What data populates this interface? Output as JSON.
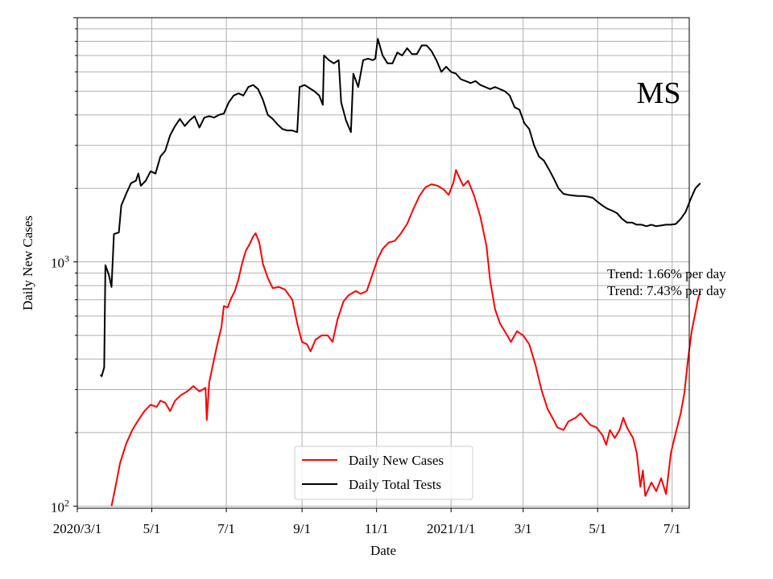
{
  "chart_data": {
    "type": "line",
    "title": "",
    "region_label": "MS",
    "xlabel": "Date",
    "ylabel": "Daily New Cases",
    "yscale": "log",
    "ylim": [
      98,
      10000
    ],
    "xlim_days": [
      0,
      501
    ],
    "x_ticks": [
      {
        "day": 0,
        "label": "2020/3/1"
      },
      {
        "day": 61,
        "label": "5/1"
      },
      {
        "day": 122,
        "label": "7/1"
      },
      {
        "day": 184,
        "label": "9/1"
      },
      {
        "day": 245,
        "label": "11/1"
      },
      {
        "day": 306,
        "label": "2021/1/1"
      },
      {
        "day": 365,
        "label": "3/1"
      },
      {
        "day": 426,
        "label": "5/1"
      },
      {
        "day": 487,
        "label": "7/1"
      }
    ],
    "y_ticks": [
      {
        "value": 100,
        "base": "10",
        "exp": "2"
      },
      {
        "value": 1000,
        "base": "10",
        "exp": "3"
      }
    ],
    "grid": true,
    "legend": {
      "position": "bottom-center"
    },
    "annotations": [
      "Trend: 1.66% per day",
      "Trend: 7.43% per day"
    ],
    "series": [
      {
        "name": "Daily New Cases",
        "color": "#ff0000",
        "points": [
          [
            28,
            100
          ],
          [
            31,
            118
          ],
          [
            35,
            150
          ],
          [
            40,
            180
          ],
          [
            45,
            205
          ],
          [
            50,
            225
          ],
          [
            55,
            245
          ],
          [
            60,
            260
          ],
          [
            65,
            255
          ],
          [
            68,
            270
          ],
          [
            72,
            265
          ],
          [
            76,
            245
          ],
          [
            80,
            270
          ],
          [
            85,
            285
          ],
          [
            90,
            295
          ],
          [
            95,
            310
          ],
          [
            100,
            295
          ],
          [
            105,
            305
          ],
          [
            106,
            225
          ],
          [
            108,
            320
          ],
          [
            112,
            400
          ],
          [
            115,
            470
          ],
          [
            118,
            540
          ],
          [
            120,
            660
          ],
          [
            123,
            650
          ],
          [
            126,
            710
          ],
          [
            129,
            760
          ],
          [
            132,
            850
          ],
          [
            135,
            990
          ],
          [
            138,
            1110
          ],
          [
            141,
            1180
          ],
          [
            144,
            1270
          ],
          [
            146,
            1310
          ],
          [
            149,
            1200
          ],
          [
            152,
            980
          ],
          [
            156,
            860
          ],
          [
            160,
            780
          ],
          [
            165,
            790
          ],
          [
            170,
            770
          ],
          [
            176,
            700
          ],
          [
            180,
            560
          ],
          [
            184,
            470
          ],
          [
            188,
            460
          ],
          [
            191,
            430
          ],
          [
            195,
            480
          ],
          [
            200,
            500
          ],
          [
            205,
            500
          ],
          [
            209,
            470
          ],
          [
            213,
            580
          ],
          [
            218,
            690
          ],
          [
            222,
            730
          ],
          [
            228,
            760
          ],
          [
            232,
            740
          ],
          [
            237,
            760
          ],
          [
            242,
            900
          ],
          [
            246,
            1030
          ],
          [
            250,
            1130
          ],
          [
            255,
            1200
          ],
          [
            260,
            1220
          ],
          [
            265,
            1310
          ],
          [
            270,
            1430
          ],
          [
            275,
            1640
          ],
          [
            280,
            1860
          ],
          [
            285,
            2020
          ],
          [
            290,
            2080
          ],
          [
            295,
            2050
          ],
          [
            300,
            1980
          ],
          [
            304,
            1880
          ],
          [
            308,
            2120
          ],
          [
            310,
            2380
          ],
          [
            313,
            2200
          ],
          [
            316,
            2050
          ],
          [
            320,
            2150
          ],
          [
            325,
            1860
          ],
          [
            330,
            1530
          ],
          [
            335,
            1160
          ],
          [
            338,
            840
          ],
          [
            342,
            640
          ],
          [
            346,
            560
          ],
          [
            352,
            500
          ],
          [
            355,
            470
          ],
          [
            360,
            520
          ],
          [
            365,
            500
          ],
          [
            370,
            460
          ],
          [
            375,
            380
          ],
          [
            380,
            300
          ],
          [
            385,
            250
          ],
          [
            390,
            225
          ],
          [
            393,
            210
          ],
          [
            398,
            205
          ],
          [
            402,
            222
          ],
          [
            408,
            230
          ],
          [
            412,
            240
          ],
          [
            415,
            230
          ],
          [
            420,
            215
          ],
          [
            425,
            210
          ],
          [
            430,
            195
          ],
          [
            433,
            178
          ],
          [
            436,
            205
          ],
          [
            440,
            190
          ],
          [
            444,
            205
          ],
          [
            447,
            230
          ],
          [
            450,
            210
          ],
          [
            455,
            190
          ],
          [
            458,
            165
          ],
          [
            461,
            120
          ],
          [
            463,
            140
          ],
          [
            465,
            110
          ],
          [
            470,
            125
          ],
          [
            474,
            115
          ],
          [
            478,
            130
          ],
          [
            482,
            112
          ],
          [
            486,
            165
          ],
          [
            490,
            200
          ],
          [
            494,
            240
          ],
          [
            497,
            290
          ],
          [
            500,
            400
          ],
          [
            503,
            520
          ],
          [
            506,
            620
          ],
          [
            508,
            700
          ],
          [
            510,
            760
          ]
        ]
      },
      {
        "name": "Daily Total Tests",
        "color": "#000000",
        "points": [
          [
            19,
            345
          ],
          [
            20,
            340
          ],
          [
            22,
            370
          ],
          [
            23,
            970
          ],
          [
            26,
            880
          ],
          [
            28,
            790
          ],
          [
            30,
            1300
          ],
          [
            34,
            1320
          ],
          [
            36,
            1700
          ],
          [
            40,
            1900
          ],
          [
            44,
            2100
          ],
          [
            48,
            2150
          ],
          [
            50,
            2300
          ],
          [
            52,
            2050
          ],
          [
            56,
            2150
          ],
          [
            60,
            2350
          ],
          [
            64,
            2300
          ],
          [
            68,
            2700
          ],
          [
            72,
            2850
          ],
          [
            76,
            3300
          ],
          [
            80,
            3600
          ],
          [
            84,
            3850
          ],
          [
            88,
            3600
          ],
          [
            92,
            3800
          ],
          [
            96,
            3950
          ],
          [
            100,
            3550
          ],
          [
            104,
            3900
          ],
          [
            108,
            3950
          ],
          [
            112,
            3900
          ],
          [
            116,
            4000
          ],
          [
            120,
            4050
          ],
          [
            124,
            4500
          ],
          [
            128,
            4800
          ],
          [
            132,
            4900
          ],
          [
            136,
            4800
          ],
          [
            140,
            5200
          ],
          [
            144,
            5300
          ],
          [
            148,
            5100
          ],
          [
            152,
            4600
          ],
          [
            156,
            4000
          ],
          [
            160,
            3850
          ],
          [
            164,
            3650
          ],
          [
            168,
            3500
          ],
          [
            172,
            3450
          ],
          [
            176,
            3450
          ],
          [
            180,
            3400
          ],
          [
            182,
            5200
          ],
          [
            186,
            5300
          ],
          [
            190,
            5150
          ],
          [
            194,
            5000
          ],
          [
            198,
            4800
          ],
          [
            201,
            4400
          ],
          [
            202,
            7000
          ],
          [
            206,
            6700
          ],
          [
            210,
            6500
          ],
          [
            214,
            6700
          ],
          [
            216,
            4500
          ],
          [
            220,
            3800
          ],
          [
            224,
            3400
          ],
          [
            226,
            5900
          ],
          [
            230,
            5200
          ],
          [
            234,
            6700
          ],
          [
            238,
            6800
          ],
          [
            242,
            6700
          ],
          [
            244,
            6800
          ],
          [
            246,
            8200
          ],
          [
            250,
            7000
          ],
          [
            254,
            6500
          ],
          [
            258,
            6500
          ],
          [
            262,
            7200
          ],
          [
            266,
            7000
          ],
          [
            270,
            7500
          ],
          [
            274,
            7100
          ],
          [
            278,
            7100
          ],
          [
            282,
            7700
          ],
          [
            286,
            7700
          ],
          [
            290,
            7300
          ],
          [
            294,
            6700
          ],
          [
            298,
            6000
          ],
          [
            302,
            6300
          ],
          [
            306,
            6000
          ],
          [
            310,
            5900
          ],
          [
            314,
            5600
          ],
          [
            318,
            5500
          ],
          [
            322,
            5400
          ],
          [
            326,
            5500
          ],
          [
            330,
            5300
          ],
          [
            334,
            5200
          ],
          [
            338,
            5100
          ],
          [
            342,
            5200
          ],
          [
            346,
            5100
          ],
          [
            350,
            5000
          ],
          [
            354,
            4800
          ],
          [
            358,
            4300
          ],
          [
            362,
            4200
          ],
          [
            366,
            3700
          ],
          [
            370,
            3500
          ],
          [
            374,
            3000
          ],
          [
            378,
            2700
          ],
          [
            382,
            2600
          ],
          [
            386,
            2400
          ],
          [
            390,
            2200
          ],
          [
            394,
            2000
          ],
          [
            398,
            1900
          ],
          [
            402,
            1880
          ],
          [
            406,
            1870
          ],
          [
            410,
            1860
          ],
          [
            414,
            1860
          ],
          [
            418,
            1850
          ],
          [
            422,
            1830
          ],
          [
            426,
            1760
          ],
          [
            430,
            1700
          ],
          [
            434,
            1650
          ],
          [
            438,
            1620
          ],
          [
            442,
            1580
          ],
          [
            446,
            1500
          ],
          [
            450,
            1450
          ],
          [
            454,
            1450
          ],
          [
            458,
            1420
          ],
          [
            462,
            1420
          ],
          [
            466,
            1400
          ],
          [
            470,
            1420
          ],
          [
            474,
            1400
          ],
          [
            478,
            1410
          ],
          [
            482,
            1420
          ],
          [
            486,
            1420
          ],
          [
            490,
            1430
          ],
          [
            494,
            1500
          ],
          [
            498,
            1600
          ],
          [
            502,
            1800
          ],
          [
            506,
            2000
          ],
          [
            510,
            2100
          ]
        ]
      }
    ]
  }
}
